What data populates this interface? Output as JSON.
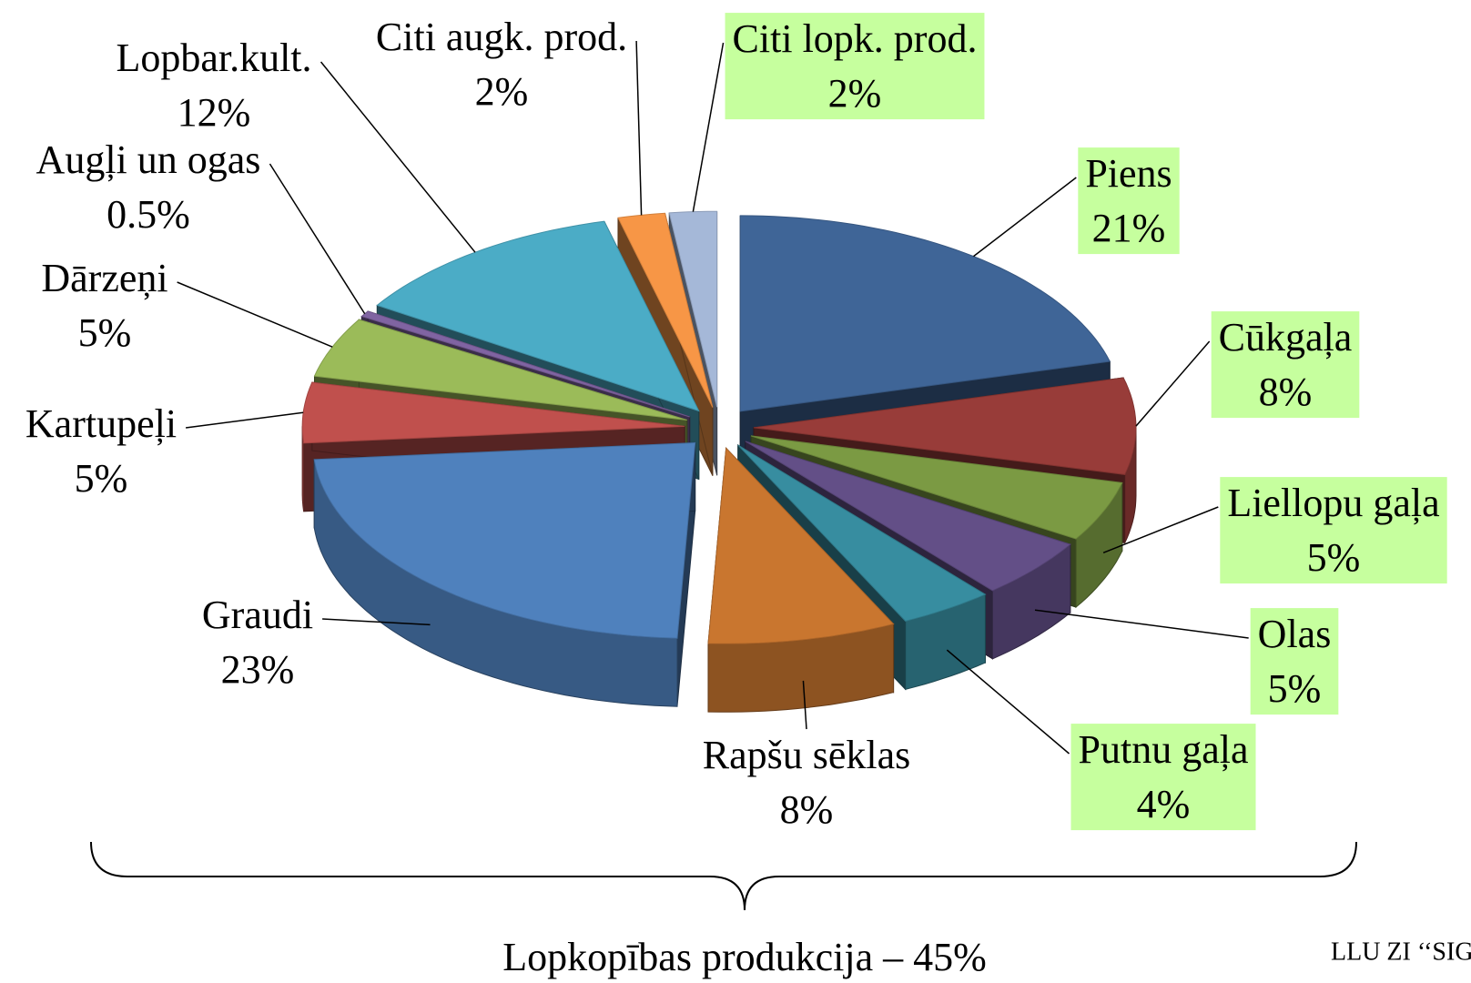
{
  "chart_data": {
    "type": "pie3d",
    "categories": [
      "Piens",
      "Cūkgaļa",
      "Liellopu gaļa",
      "Olas",
      "Putnu gaļa",
      "Rapšu sēklas",
      "Graudi",
      "Kartupeļi",
      "Dārzeņi",
      "Augļi un ogas",
      "Lopbar.kult.",
      "Citi augk. prod.",
      "Citi lopk. prod."
    ],
    "values": [
      21,
      8,
      5,
      5,
      4,
      8,
      23,
      5,
      5,
      0.5,
      12,
      2,
      2
    ],
    "value_labels": [
      "21%",
      "8%",
      "5%",
      "5%",
      "4%",
      "8%",
      "23%",
      "5%",
      "5%",
      "0.5%",
      "12%",
      "2%",
      "2%"
    ],
    "colors": [
      "#3f6597",
      "#983c39",
      "#7b9a43",
      "#634f87",
      "#378da0",
      "#c9762f",
      "#4f81bd",
      "#c0504d",
      "#9bbb59",
      "#8064a2",
      "#4bacc6",
      "#f79646",
      "#a5b8d8"
    ],
    "highlight": [
      true,
      true,
      true,
      true,
      true,
      false,
      false,
      false,
      false,
      false,
      false,
      false,
      true
    ],
    "highlight_color": "#c6ff9e",
    "annotation": "Lopkopības produkcija – 45%",
    "source": "LLU ZI ‘‘SIG"
  }
}
